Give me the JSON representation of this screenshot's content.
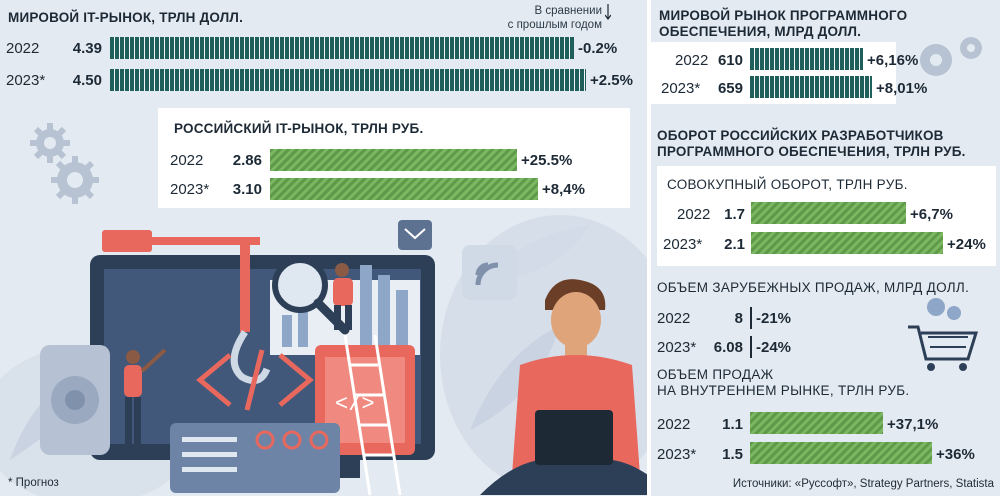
{
  "chart_data": [
    {
      "type": "bar",
      "title": "МИРОВОЙ IT-РЫНОК, ТРЛН ДОЛЛ.",
      "comparison_note": [
        "В сравнении",
        "с прошлым годом"
      ],
      "categories": [
        "2022",
        "2023*"
      ],
      "values": [
        4.39,
        4.5
      ],
      "value_labels": [
        "4.39",
        "4.50"
      ],
      "changes": [
        "-0.2%",
        "+2.5%"
      ],
      "color": "#1f5f5b"
    },
    {
      "type": "bar",
      "title": "РОССИЙСКИЙ IT-РЫНОК, ТРЛН РУБ.",
      "categories": [
        "2022",
        "2023*"
      ],
      "values": [
        2.86,
        3.1
      ],
      "value_labels": [
        "2.86",
        "3.10"
      ],
      "changes": [
        "+25.5%",
        "+8,4%"
      ],
      "color": "#6fae56"
    },
    {
      "type": "bar",
      "title": "МИРОВОЙ РЫНОК ПРОГРАММНОГО ОБЕСПЕЧЕНИЯ, МЛРД ДОЛЛ.",
      "categories": [
        "2022",
        "2023*"
      ],
      "values": [
        610,
        659
      ],
      "value_labels": [
        "610",
        "659"
      ],
      "changes": [
        "+6,16%",
        "+8,01%"
      ],
      "color": "#1f5f5b"
    },
    {
      "type": "bar",
      "title": "ОБОРОТ РОССИЙСКИХ РАЗРАБОТЧИКОВ ПРОГРАММНОГО ОБЕСПЕЧЕНИЯ, ТРЛН РУБ.",
      "subtitle": "СОВОКУПНЫЙ ОБОРОТ, ТРЛН РУБ.",
      "categories": [
        "2022",
        "2023*"
      ],
      "values": [
        1.7,
        2.1
      ],
      "value_labels": [
        "1.7",
        "2.1"
      ],
      "changes": [
        "+6,7%",
        "+24%"
      ],
      "color": "#6fae56"
    },
    {
      "type": "bar",
      "subtitle": "ОБЪЕМ ЗАРУБЕЖНЫХ ПРОДАЖ, МЛРД ДОЛЛ.",
      "categories": [
        "2022",
        "2023*"
      ],
      "values": [
        8,
        6.08
      ],
      "value_labels": [
        "8",
        "6.08"
      ],
      "changes": [
        "-21%",
        "-24%"
      ],
      "color": "#1d2a36"
    },
    {
      "type": "bar",
      "subtitle": "ОБЪЕМ ПРОДАЖ НА ВНУТРЕННЕМ РЫНКЕ, ТРЛН РУБ.",
      "subtitle_lines": [
        "ОБЪЕМ ПРОДАЖ",
        "НА ВНУТРЕННЕМ РЫНКЕ, ТРЛН РУБ."
      ],
      "categories": [
        "2022",
        "2023*"
      ],
      "values": [
        1.1,
        1.5
      ],
      "value_labels": [
        "1.1",
        "1.5"
      ],
      "changes": [
        "+37,1%",
        "+36%"
      ],
      "color": "#6fae56"
    }
  ],
  "titles": {
    "world_it": "МИРОВОЙ IT-РЫНОК, ТРЛН ДОЛЛ.",
    "russian_it": "РОССИЙСКИЙ IT-РЫНОК, ТРЛН РУБ.",
    "world_sw_lines": [
      "МИРОВОЙ РЫНОК ПРОГРАММНОГО",
      "ОБЕСПЕЧЕНИЯ, МЛРД ДОЛЛ."
    ],
    "ru_dev_lines": [
      "ОБОРОТ РОССИЙСКИХ РАЗРАБОТЧИКОВ",
      "ПРОГРАММНОГО ОБЕСПЕЧЕНИЯ, ТРЛН РУБ."
    ],
    "total_turnover": "СОВОКУПНЫЙ ОБОРОТ, ТРЛН РУБ.",
    "foreign_sales": "ОБЪЕМ ЗАРУБЕЖНЫХ ПРОДАЖ, МЛРД ДОЛЛ.",
    "domestic_lines": [
      "ОБЪЕМ ПРОДАЖ",
      "НА ВНУТРЕННЕМ РЫНКЕ, ТРЛН РУБ."
    ],
    "cmp_line1": "В сравнении",
    "cmp_line2": "с прошлым годом"
  },
  "footnote": "* Прогноз",
  "source": "Источники: «Руссофт», Strategy Partners, Statista",
  "colors": {
    "background": "#e4eaf1",
    "teal": "#1f5f5b",
    "green": "#6fae56",
    "text": "#1d2a36"
  },
  "icons": [
    "gear-icon",
    "laptop-icon",
    "magnifier-icon",
    "crane-hook-icon",
    "wifi-icon",
    "mail-icon",
    "shopping-cart-icon",
    "person-icon"
  ]
}
